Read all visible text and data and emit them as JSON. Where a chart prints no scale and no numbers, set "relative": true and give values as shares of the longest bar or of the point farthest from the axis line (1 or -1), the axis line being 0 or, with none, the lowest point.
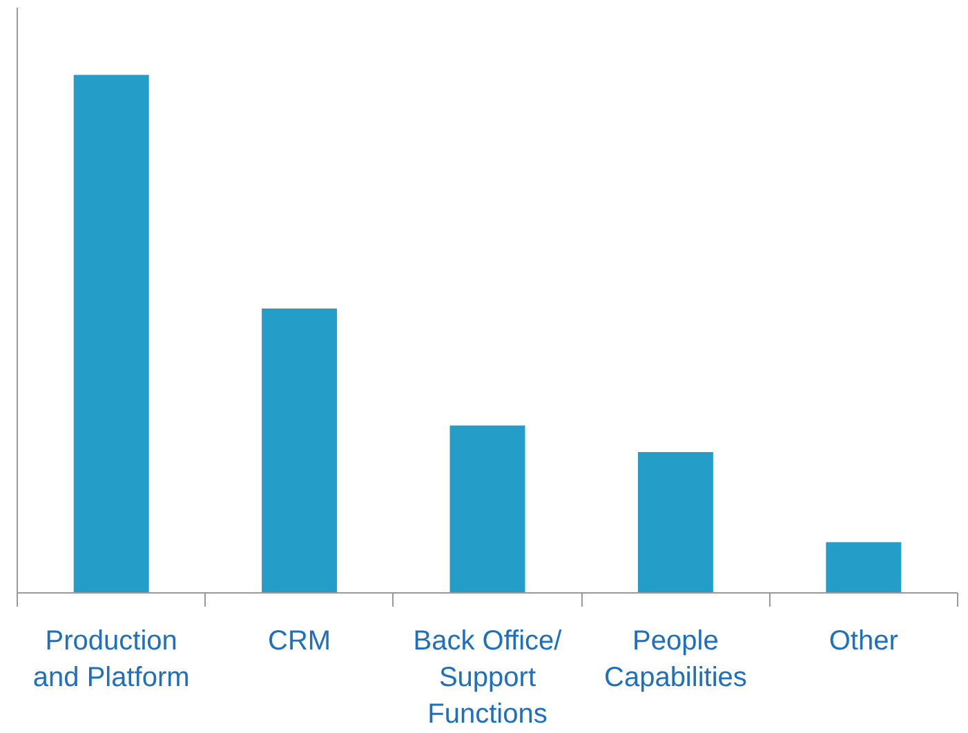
{
  "chart_data": {
    "type": "bar",
    "relative": true,
    "categories": [
      "Production and Platform",
      "CRM",
      "Back Office/ Support Functions",
      "People Capabilities",
      "Other"
    ],
    "values": [
      1,
      0.549,
      0.323,
      0.272,
      0.098
    ],
    "color": "#259dc9",
    "grid": false
  }
}
